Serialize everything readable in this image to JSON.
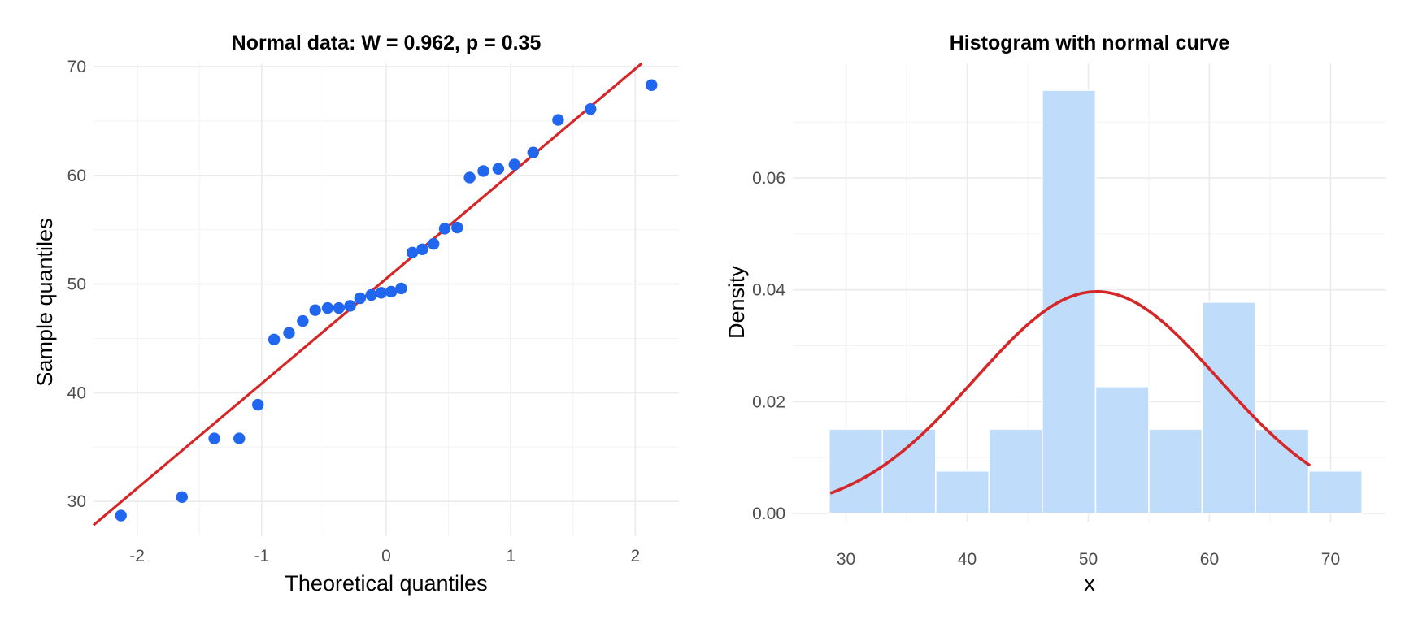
{
  "chart_data": [
    {
      "type": "scatter",
      "title": "Normal data: W = 0.962, p = 0.35",
      "xlabel": "Theoretical quantiles",
      "ylabel": "Sample quantiles",
      "xlim": [
        -2.35,
        2.35
      ],
      "ylim": [
        26.8,
        70.3
      ],
      "x_ticks": [
        -2,
        -1,
        0,
        1,
        2
      ],
      "x_tick_labels": [
        "-2",
        "-1",
        "0",
        "1",
        "2"
      ],
      "y_ticks": [
        30,
        40,
        50,
        60,
        70
      ],
      "y_tick_labels": [
        "30",
        "40",
        "50",
        "60",
        "70"
      ],
      "grid": true,
      "point_color": "#2166ee",
      "line_color": "#d62728",
      "points": [
        {
          "x": -2.13,
          "y": 28.7
        },
        {
          "x": -1.64,
          "y": 30.4
        },
        {
          "x": -1.38,
          "y": 35.8
        },
        {
          "x": -1.18,
          "y": 35.8
        },
        {
          "x": -1.03,
          "y": 38.9
        },
        {
          "x": -0.9,
          "y": 44.9
        },
        {
          "x": -0.78,
          "y": 45.5
        },
        {
          "x": -0.67,
          "y": 46.6
        },
        {
          "x": -0.57,
          "y": 47.6
        },
        {
          "x": -0.47,
          "y": 47.8
        },
        {
          "x": -0.38,
          "y": 47.8
        },
        {
          "x": -0.29,
          "y": 48.0
        },
        {
          "x": -0.21,
          "y": 48.7
        },
        {
          "x": -0.12,
          "y": 49.0
        },
        {
          "x": -0.04,
          "y": 49.2
        },
        {
          "x": 0.04,
          "y": 49.3
        },
        {
          "x": 0.12,
          "y": 49.6
        },
        {
          "x": 0.21,
          "y": 52.9
        },
        {
          "x": 0.29,
          "y": 53.2
        },
        {
          "x": 0.38,
          "y": 53.7
        },
        {
          "x": 0.47,
          "y": 55.1
        },
        {
          "x": 0.57,
          "y": 55.2
        },
        {
          "x": 0.67,
          "y": 59.8
        },
        {
          "x": 0.78,
          "y": 60.4
        },
        {
          "x": 0.9,
          "y": 60.6
        },
        {
          "x": 1.03,
          "y": 61.0
        },
        {
          "x": 1.18,
          "y": 62.1
        },
        {
          "x": 1.38,
          "y": 65.1
        },
        {
          "x": 1.64,
          "y": 66.1
        },
        {
          "x": 2.13,
          "y": 68.3
        }
      ],
      "reference_line": {
        "intercept": 50.5,
        "slope": 9.65
      }
    },
    {
      "type": "bar",
      "title": "Histogram with normal curve",
      "xlabel": "x",
      "ylabel": "Density",
      "xlim": [
        25.6,
        74.6
      ],
      "ylim": [
        -0.0016,
        0.0805
      ],
      "x_ticks": [
        30,
        40,
        50,
        60,
        70
      ],
      "x_tick_labels": [
        "30",
        "40",
        "50",
        "60",
        "70"
      ],
      "y_ticks": [
        0.0,
        0.02,
        0.04,
        0.06
      ],
      "y_tick_labels": [
        "0.00",
        "0.02",
        "0.04",
        "0.06"
      ],
      "grid": true,
      "bar_color": "#bfdcfb",
      "curve_color": "#d62728",
      "bins": [
        {
          "start": 28.6,
          "end": 33.0,
          "density": 0.0151
        },
        {
          "start": 33.0,
          "end": 37.4,
          "density": 0.0151
        },
        {
          "start": 37.4,
          "end": 41.8,
          "density": 0.0076
        },
        {
          "start": 41.8,
          "end": 46.2,
          "density": 0.0151
        },
        {
          "start": 46.2,
          "end": 50.6,
          "density": 0.0757
        },
        {
          "start": 50.6,
          "end": 55.0,
          "density": 0.0227
        },
        {
          "start": 55.0,
          "end": 59.4,
          "density": 0.0151
        },
        {
          "start": 59.4,
          "end": 63.8,
          "density": 0.0378
        },
        {
          "start": 63.8,
          "end": 68.2,
          "density": 0.0151
        },
        {
          "start": 68.2,
          "end": 72.6,
          "density": 0.0076
        }
      ],
      "normal_curve": {
        "mean": 50.7,
        "sd": 10.05,
        "from": 28.7,
        "to": 68.3
      }
    }
  ]
}
